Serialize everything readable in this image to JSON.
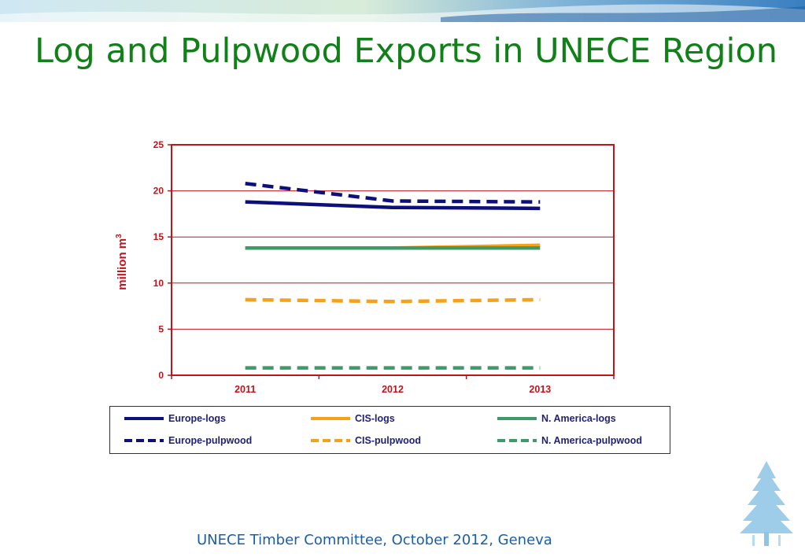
{
  "slide": {
    "title": "Log and Pulpwood Exports in UNECE Region",
    "footer": "UNECE Timber Committee, October 2012, Geneva"
  },
  "colors": {
    "title": "#118019",
    "footer": "#1a5ea8",
    "axis": "#c0141b",
    "europe": "#0d0f7a",
    "cis": "#f5a21a",
    "namerica": "#3f9a6a"
  },
  "icons": {
    "banner": "mosaic-wave-banner",
    "logo": "pine-tree-icon"
  },
  "chart_data": {
    "type": "line",
    "title": "",
    "xlabel": "",
    "ylabel": "million m3",
    "ylabel_main": "million m",
    "ylabel_sup": "3",
    "x": [
      "2011",
      "2012",
      "2013"
    ],
    "ylim": [
      0,
      25
    ],
    "yticks": [
      0,
      5,
      10,
      15,
      20,
      25
    ],
    "grid": true,
    "legend_position": "bottom",
    "series": [
      {
        "name": "Europe-logs",
        "color": "#0d0f7a",
        "dashed": false,
        "values": [
          18.8,
          18.2,
          18.1
        ]
      },
      {
        "name": "CIS-logs",
        "color": "#f5a21a",
        "dashed": false,
        "values": [
          13.8,
          13.8,
          14.1
        ]
      },
      {
        "name": "N. America-logs",
        "color": "#3f9a6a",
        "dashed": false,
        "values": [
          13.8,
          13.8,
          13.8
        ]
      },
      {
        "name": "Europe-pulpwood",
        "color": "#0d0f7a",
        "dashed": true,
        "values": [
          20.8,
          18.9,
          18.8
        ]
      },
      {
        "name": "CIS-pulpwood",
        "color": "#f5a21a",
        "dashed": true,
        "values": [
          8.2,
          8.0,
          8.2
        ]
      },
      {
        "name": "N. America-pulpwood",
        "color": "#3f9a6a",
        "dashed": true,
        "values": [
          0.8,
          0.8,
          0.8
        ]
      }
    ]
  }
}
